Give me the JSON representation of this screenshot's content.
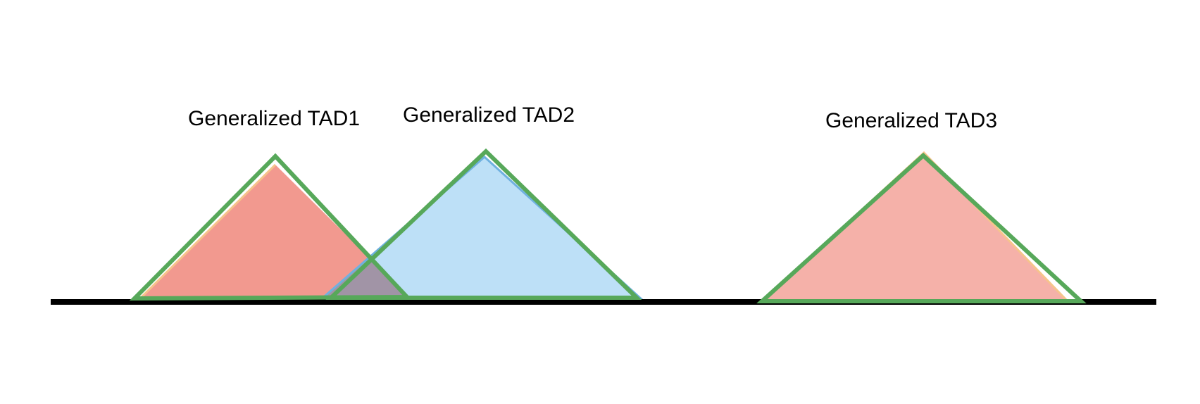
{
  "labels": {
    "tad1": "Generalized TAD1",
    "tad2": "Generalized TAD2",
    "tad3": "Generalized TAD3"
  },
  "colors": {
    "background": "#ffffff",
    "baseline": "#000000",
    "tad1_fill": "#f2998f",
    "tad2_fill": "#bde0f7",
    "tad3_fill": "#f5b1a9",
    "overlap_fill": "#a194a6",
    "outline_green": "#57a85a",
    "outline_orange": "#f6c48b",
    "outline_blue": "#6fb1e0",
    "text": "#000000"
  }
}
